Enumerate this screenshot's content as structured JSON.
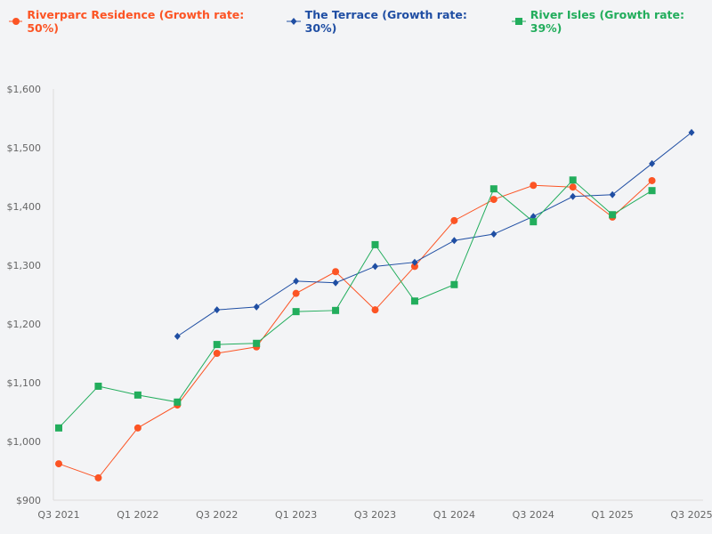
{
  "chart_data": {
    "type": "line",
    "title": "",
    "xlabel": "",
    "ylabel": "",
    "x": [
      "Q3 2021",
      "Q4 2021",
      "Q1 2022",
      "Q2 2022",
      "Q3 2022",
      "Q4 2022",
      "Q1 2023",
      "Q2 2023",
      "Q3 2023",
      "Q4 2023",
      "Q1 2024",
      "Q2 2024",
      "Q3 2024",
      "Q4 2024",
      "Q1 2025",
      "Q2 2025",
      "Q3 2025"
    ],
    "x_tick_labels": [
      "Q3 2021",
      "Q1 2022",
      "Q3 2022",
      "Q1 2023",
      "Q3 2023",
      "Q1 2024",
      "Q3 2024",
      "Q1 2025",
      "Q3 2025"
    ],
    "ylim": [
      900,
      1600
    ],
    "y_tick_labels": [
      "$900",
      "$1,000",
      "$1,100",
      "$1,200",
      "$1,300",
      "$1,400",
      "$1,500",
      "$1,600"
    ],
    "y_ticks": [
      900,
      1000,
      1100,
      1200,
      1300,
      1400,
      1500,
      1600
    ],
    "grid": false,
    "legend_position": "top-left",
    "series": [
      {
        "name": "Riverparc Residence (Growth rate: 50%)",
        "color": "#fc5424",
        "marker": "circle",
        "values": [
          962,
          938,
          1023,
          1062,
          1150,
          1161,
          1252,
          1289,
          1224,
          1298,
          1376,
          1412,
          1436,
          1433,
          1382,
          1444,
          null
        ]
      },
      {
        "name": "The Terrace (Growth rate: 30%)",
        "color": "#1f4ea3",
        "marker": "diamond",
        "values": [
          null,
          null,
          null,
          1179,
          1224,
          1229,
          1273,
          1270,
          1298,
          1305,
          1342,
          1353,
          1383,
          1417,
          1420,
          1473,
          1526
        ]
      },
      {
        "name": "River Isles (Growth rate: 39%)",
        "color": "#22ad5c",
        "marker": "square",
        "values": [
          1023,
          1094,
          1079,
          1067,
          1165,
          1167,
          1221,
          1223,
          1335,
          1239,
          1267,
          1430,
          1374,
          1445,
          1386,
          1427,
          null
        ]
      }
    ]
  }
}
